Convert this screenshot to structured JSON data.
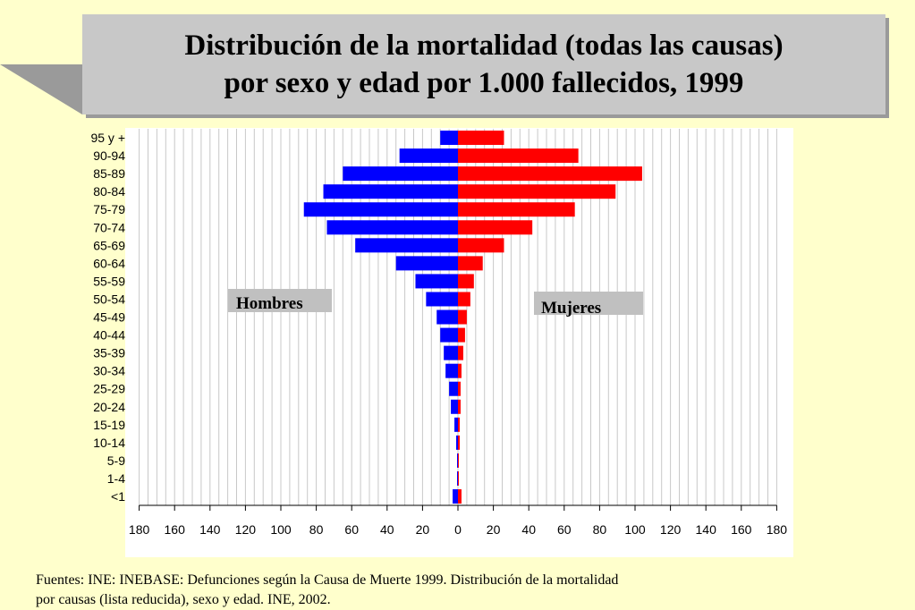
{
  "slide": {
    "background_color": "#FFFFCC",
    "title_lines": [
      "Distribución de la mortalidad (todas las causas)",
      "por sexo y edad por 1.000 fallecidos, 1999"
    ],
    "source_lines": [
      "Fuentes: INE: INEBASE: Defunciones según la Causa de Muerte 1999. Distribución de la mortalidad",
      "por causas (lista reducida), sexo y edad. INE, 2002."
    ]
  },
  "chart_data": {
    "type": "bar",
    "orientation": "horizontal-population-pyramid",
    "categories": [
      "95 y +",
      "90-94",
      "85-89",
      "80-84",
      "75-79",
      "70-74",
      "65-69",
      "60-64",
      "55-59",
      "50-54",
      "45-49",
      "40-44",
      "35-39",
      "30-34",
      "25-29",
      "20-24",
      "15-19",
      "10-14",
      "5-9",
      "1-4",
      "<1"
    ],
    "series": [
      {
        "name": "Hombres",
        "color": "#0000FF",
        "side": "left",
        "values": [
          10,
          33,
          65,
          76,
          87,
          74,
          58,
          35,
          24,
          18,
          12,
          10,
          8,
          7,
          5,
          4,
          2,
          1,
          0.5,
          0.5,
          3
        ]
      },
      {
        "name": "Mujeres",
        "color": "#FF0000",
        "side": "right",
        "values": [
          26,
          68,
          104,
          89,
          66,
          42,
          26,
          14,
          9,
          7,
          5,
          4,
          3,
          2,
          1.5,
          1.5,
          1,
          1,
          0.5,
          0.5,
          2
        ]
      }
    ],
    "x_ticks": [
      "180",
      "160",
      "140",
      "120",
      "100",
      "80",
      "60",
      "40",
      "20",
      "0",
      "20",
      "40",
      "60",
      "80",
      "100",
      "120",
      "140",
      "160",
      "180"
    ],
    "xlim": [
      -180,
      180
    ],
    "grid": true,
    "legend": {
      "hombres_label": "Hombres",
      "mujeres_label": "Mujeres",
      "box_color": "#C0C0C0"
    }
  }
}
